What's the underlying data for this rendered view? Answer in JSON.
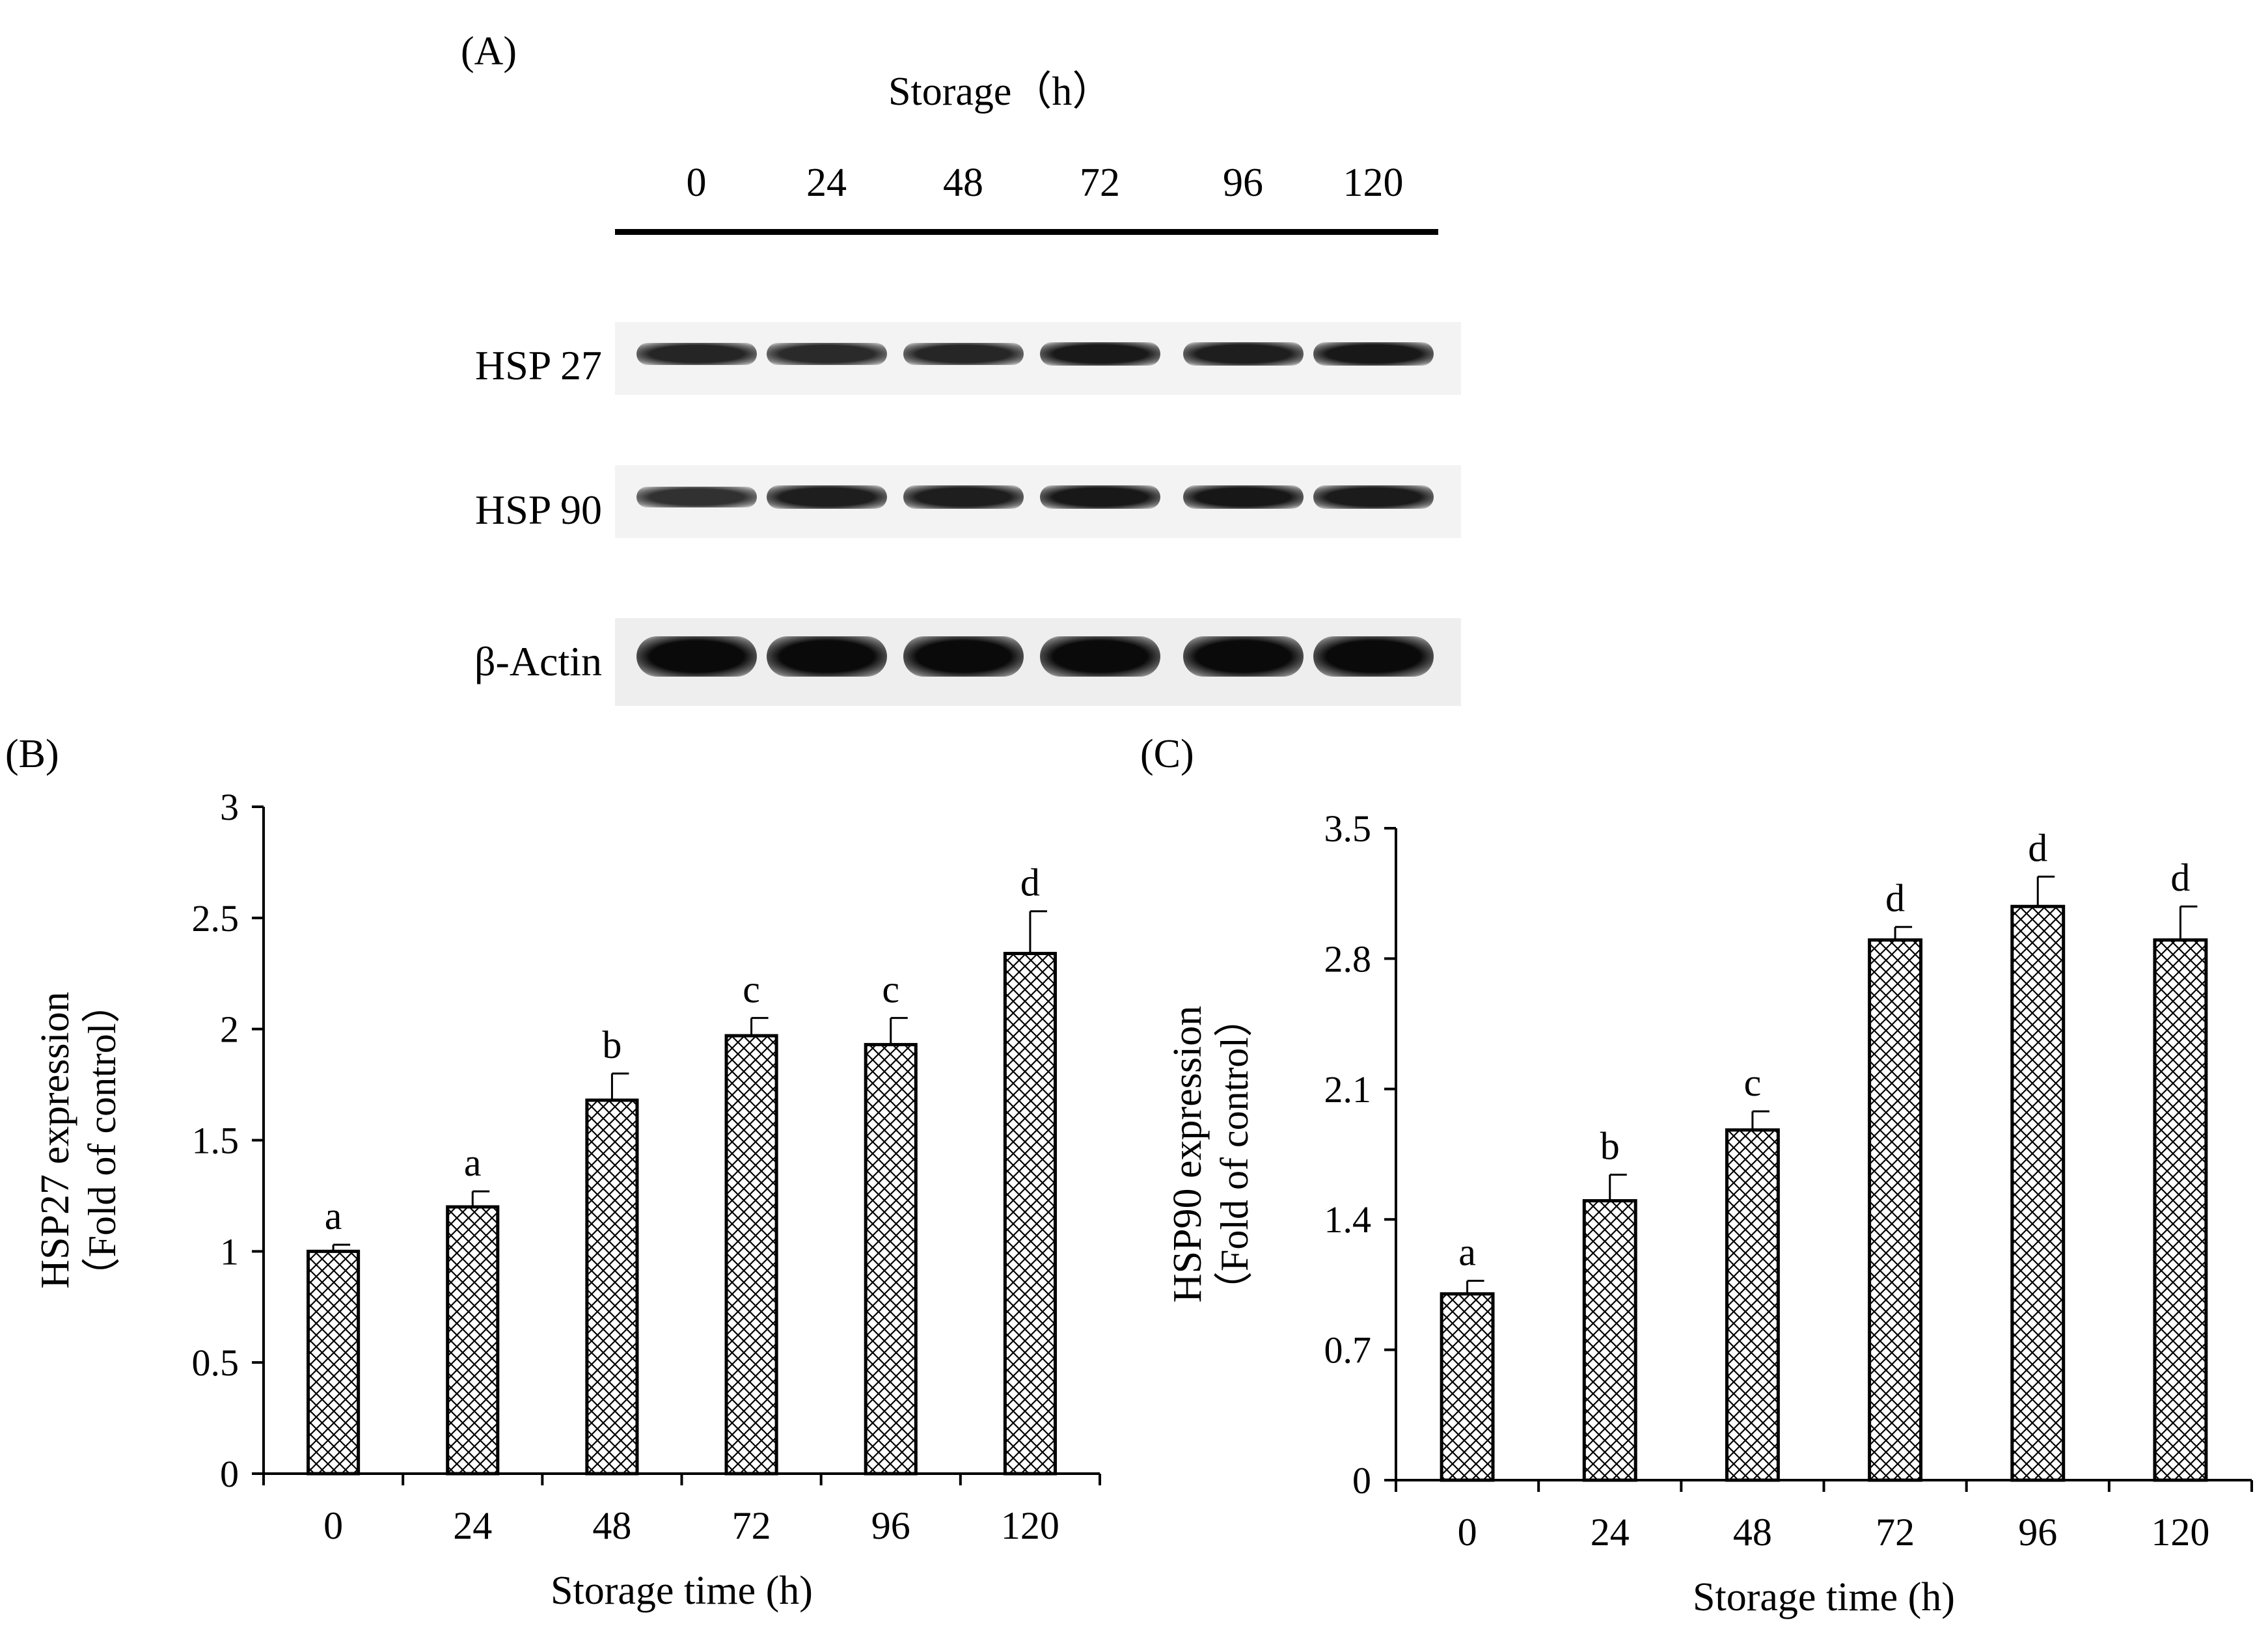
{
  "panels": {
    "a_label": "(A)",
    "b_label": "(B)",
    "c_label": "(C)"
  },
  "blot": {
    "title": "Storage（h）",
    "lanes": [
      "0",
      "24",
      "48",
      "72",
      "96",
      "120"
    ],
    "rows": [
      {
        "label": "HSP 27",
        "intensity": [
          0.62,
          0.55,
          0.6,
          0.78,
          0.72,
          0.8
        ]
      },
      {
        "label": "HSP 90",
        "intensity": [
          0.45,
          0.72,
          0.72,
          0.8,
          0.82,
          0.76
        ]
      },
      {
        "label": "β-Actin",
        "intensity": [
          1.0,
          1.0,
          1.0,
          1.0,
          1.0,
          1.0
        ]
      }
    ]
  },
  "colors": {
    "ink": "#000000",
    "bar_fill_pattern": "crosshatch",
    "blot_background": "#f3f3f3"
  },
  "chart_data": [
    {
      "type": "bar",
      "panel": "(B)",
      "categories": [
        "0",
        "24",
        "48",
        "72",
        "96",
        "120"
      ],
      "values": [
        1.0,
        1.2,
        1.68,
        1.97,
        1.93,
        2.34
      ],
      "errors": [
        0.03,
        0.07,
        0.12,
        0.08,
        0.12,
        0.19
      ],
      "letters": [
        "a",
        "a",
        "b",
        "c",
        "c",
        "d"
      ],
      "xlabel": "Storage time (h)",
      "ylabel": "HSP27 expression",
      "ylabel2": "（Fold of control）",
      "ylim": [
        0,
        3
      ],
      "yticks": [
        "0",
        "0.5",
        "1",
        "1.5",
        "2",
        "2.5",
        "3"
      ],
      "ytick_values": [
        0,
        0.5,
        1,
        1.5,
        2,
        2.5,
        3
      ],
      "grid": false,
      "legend": "none"
    },
    {
      "type": "bar",
      "panel": "(C)",
      "categories": [
        "0",
        "24",
        "48",
        "72",
        "96",
        "120"
      ],
      "values": [
        1.0,
        1.5,
        1.88,
        2.9,
        3.08,
        2.9
      ],
      "errors": [
        0.07,
        0.14,
        0.1,
        0.07,
        0.16,
        0.18
      ],
      "letters": [
        "a",
        "b",
        "c",
        "d",
        "d",
        "d"
      ],
      "xlabel": "Storage time (h)",
      "ylabel": "HSP90  expression",
      "ylabel2": "（Fold of control）",
      "ylim": [
        0,
        3.5
      ],
      "yticks": [
        "0",
        "0.7",
        "1.4",
        "2.1",
        "2.8",
        "3.5"
      ],
      "ytick_values": [
        0,
        0.7,
        1.4,
        2.1,
        2.8,
        3.5
      ],
      "grid": false,
      "legend": "none"
    }
  ]
}
